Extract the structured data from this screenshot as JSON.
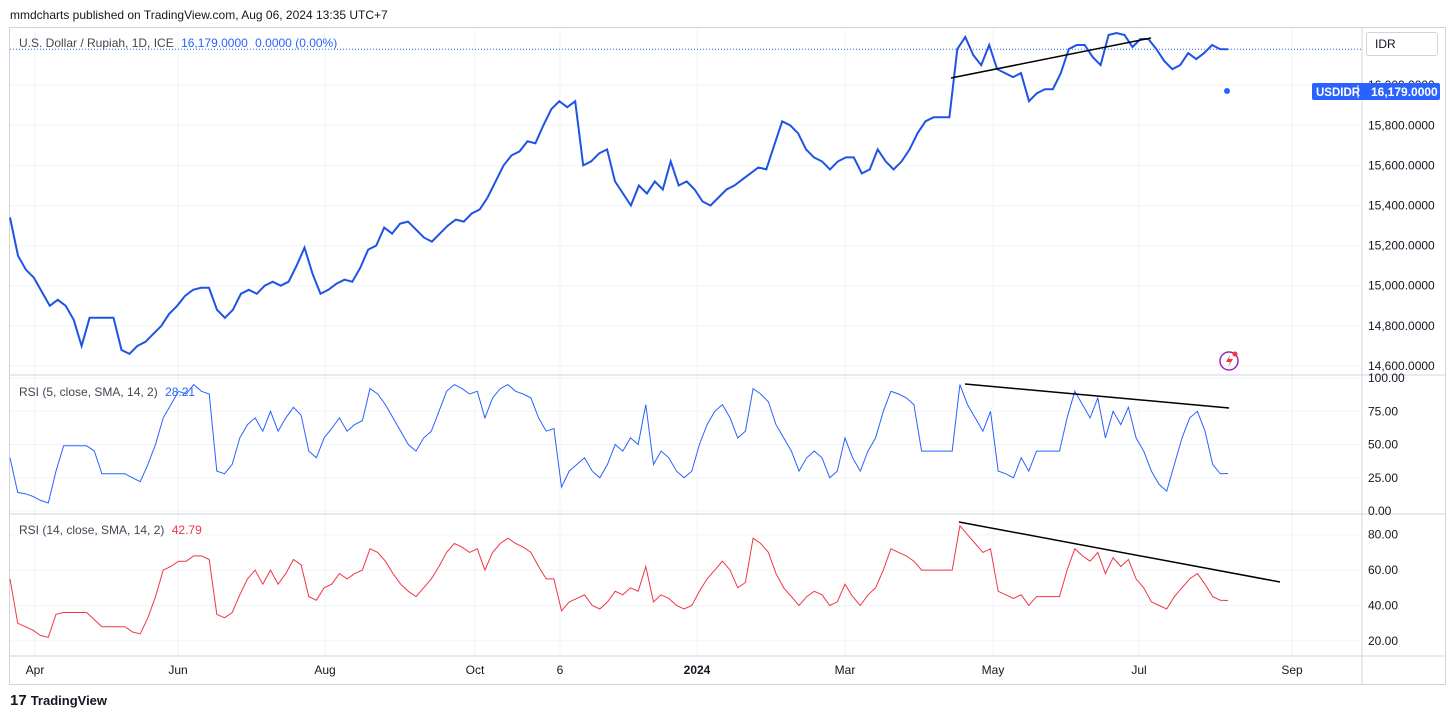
{
  "header": {
    "publisher_text": "mmdcharts published on TradingView.com, Aug 06, 2024 13:35 UTC+7"
  },
  "legend": {
    "main_title": "U.S. Dollar / Rupiah, 1D, ICE",
    "main_price": "16,179.0000",
    "main_change": "0.0000 (0.00%)",
    "rsi5_title": "RSI (5, close, SMA, 14, 2)",
    "rsi5_value": "28.21",
    "rsi14_title": "RSI (14, close, SMA, 14, 2)",
    "rsi14_value": "42.79"
  },
  "currency_label": "IDR",
  "price_tag": {
    "symbol": "USDIDR",
    "value": "16,179.0000"
  },
  "footer": {
    "brand": "TradingView",
    "logo_glyph": "17"
  },
  "colors": {
    "price_line": "#1e53e5",
    "rsi5_line": "#2962ff",
    "rsi14_line": "#f23645",
    "grid": "#f0f3fa",
    "trendline": "#000000",
    "tag_bg": "#2962ff"
  },
  "chart_data": [
    {
      "type": "line",
      "title": "U.S. Dollar / Rupiah, 1D, ICE",
      "x_tick_labels": [
        "Apr",
        "Jun",
        "Aug",
        "Oct",
        "6",
        "2024",
        "Mar",
        "May",
        "Jul",
        "Sep"
      ],
      "y_tick_labels": [
        "16,000.0000",
        "15,800.0000",
        "15,600.0000",
        "15,400.0000",
        "15,200.0000",
        "15,000.0000",
        "14,800.0000",
        "14,600.0000"
      ],
      "ylim": [
        14570,
        16280
      ],
      "last_value": 16179,
      "series": [
        {
          "values": [
            15340,
            15150,
            15080,
            15040,
            14970,
            14900,
            14930,
            14900,
            14830,
            14700,
            14840,
            14840,
            14840,
            14840,
            14680,
            14660,
            14700,
            14720,
            14760,
            14800,
            14860,
            14900,
            14950,
            14980,
            14990,
            14990,
            14880,
            14840,
            14880,
            14960,
            14980,
            14960,
            15000,
            15020,
            15000,
            15020,
            15100,
            15190,
            15060,
            14960,
            14980,
            15010,
            15030,
            15020,
            15090,
            15180,
            15200,
            15290,
            15260,
            15310,
            15320,
            15280,
            15240,
            15220,
            15260,
            15300,
            15330,
            15320,
            15360,
            15380,
            15440,
            15520,
            15600,
            15650,
            15670,
            15720,
            15710,
            15800,
            15880,
            15920,
            15890,
            15920,
            15600,
            15620,
            15660,
            15680,
            15520,
            15460,
            15400,
            15500,
            15460,
            15520,
            15480,
            15620,
            15500,
            15520,
            15480,
            15420,
            15400,
            15440,
            15480,
            15500,
            15530,
            15560,
            15590,
            15580,
            15700,
            15820,
            15800,
            15760,
            15680,
            15640,
            15620,
            15580,
            15620,
            15640,
            15640,
            15560,
            15580,
            15680,
            15620,
            15580,
            15620,
            15680,
            15760,
            15820,
            15840,
            15840,
            15840,
            16180,
            16240,
            16150,
            16100,
            16200,
            16080,
            16060,
            16040,
            16060,
            15920,
            15960,
            15980,
            15980,
            16060,
            16180,
            16200,
            16200,
            16140,
            16100,
            16250,
            16260,
            16250,
            16190,
            16230,
            16230,
            16180,
            16120,
            16080,
            16100,
            16160,
            16130,
            16160,
            16200,
            16180,
            16179
          ]
        }
      ]
    },
    {
      "type": "line",
      "title": "RSI (5, close, SMA, 14, 2)",
      "y_tick_labels": [
        "100.00",
        "75.00",
        "50.00",
        "25.00",
        "0.00"
      ],
      "ylim": [
        0,
        100
      ],
      "last_value": 28.21,
      "series": [
        {
          "values": [
            40,
            14,
            13,
            11,
            8,
            6,
            30,
            49,
            49,
            49,
            49,
            45,
            28,
            28,
            28,
            28,
            25,
            22,
            35,
            50,
            70,
            80,
            90,
            88,
            95,
            90,
            88,
            30,
            28,
            35,
            55,
            65,
            70,
            60,
            75,
            60,
            70,
            78,
            72,
            45,
            40,
            55,
            62,
            70,
            60,
            65,
            68,
            92,
            88,
            80,
            70,
            60,
            50,
            45,
            55,
            60,
            75,
            90,
            95,
            92,
            88,
            90,
            70,
            85,
            92,
            95,
            90,
            88,
            85,
            70,
            60,
            62,
            18,
            30,
            35,
            40,
            30,
            25,
            35,
            50,
            45,
            55,
            50,
            80,
            35,
            45,
            40,
            30,
            25,
            30,
            50,
            65,
            75,
            80,
            70,
            55,
            60,
            92,
            88,
            82,
            65,
            55,
            45,
            30,
            40,
            45,
            40,
            25,
            30,
            55,
            40,
            30,
            45,
            55,
            75,
            90,
            88,
            85,
            80,
            45,
            45,
            45,
            45,
            45,
            95,
            80,
            70,
            60,
            75,
            30,
            28,
            25,
            40,
            30,
            45,
            45,
            45,
            45,
            70,
            90,
            80,
            70,
            85,
            55,
            75,
            65,
            78,
            55,
            45,
            30,
            20,
            15,
            35,
            55,
            70,
            75,
            60,
            35,
            28,
            28.21
          ]
        }
      ]
    },
    {
      "type": "line",
      "title": "RSI (14, close, SMA, 14, 2)",
      "y_tick_labels": [
        "80.00",
        "60.00",
        "40.00",
        "20.00"
      ],
      "ylim": [
        12,
        90
      ],
      "last_value": 42.79,
      "series": [
        {
          "values": [
            55,
            30,
            28,
            26,
            23,
            22,
            35,
            36,
            36,
            36,
            36,
            32,
            28,
            28,
            28,
            28,
            25,
            24,
            33,
            45,
            60,
            62,
            65,
            65,
            68,
            68,
            66,
            35,
            33,
            36,
            46,
            55,
            60,
            52,
            60,
            52,
            58,
            66,
            63,
            45,
            43,
            50,
            52,
            58,
            55,
            58,
            60,
            72,
            70,
            65,
            58,
            52,
            48,
            45,
            50,
            55,
            62,
            70,
            75,
            73,
            70,
            72,
            60,
            70,
            75,
            78,
            75,
            73,
            70,
            62,
            55,
            55,
            37,
            42,
            44,
            46,
            40,
            38,
            42,
            48,
            46,
            50,
            48,
            62,
            42,
            46,
            44,
            40,
            38,
            40,
            48,
            55,
            60,
            65,
            60,
            50,
            53,
            78,
            75,
            70,
            58,
            50,
            45,
            40,
            45,
            48,
            46,
            40,
            42,
            52,
            45,
            40,
            46,
            50,
            60,
            72,
            70,
            68,
            65,
            60,
            60,
            60,
            60,
            60,
            85,
            80,
            75,
            70,
            72,
            48,
            46,
            44,
            46,
            40,
            45,
            45,
            45,
            45,
            60,
            72,
            68,
            65,
            70,
            58,
            67,
            62,
            66,
            55,
            50,
            42,
            40,
            38,
            45,
            50,
            55,
            58,
            52,
            45,
            43,
            42.79
          ]
        }
      ]
    }
  ]
}
